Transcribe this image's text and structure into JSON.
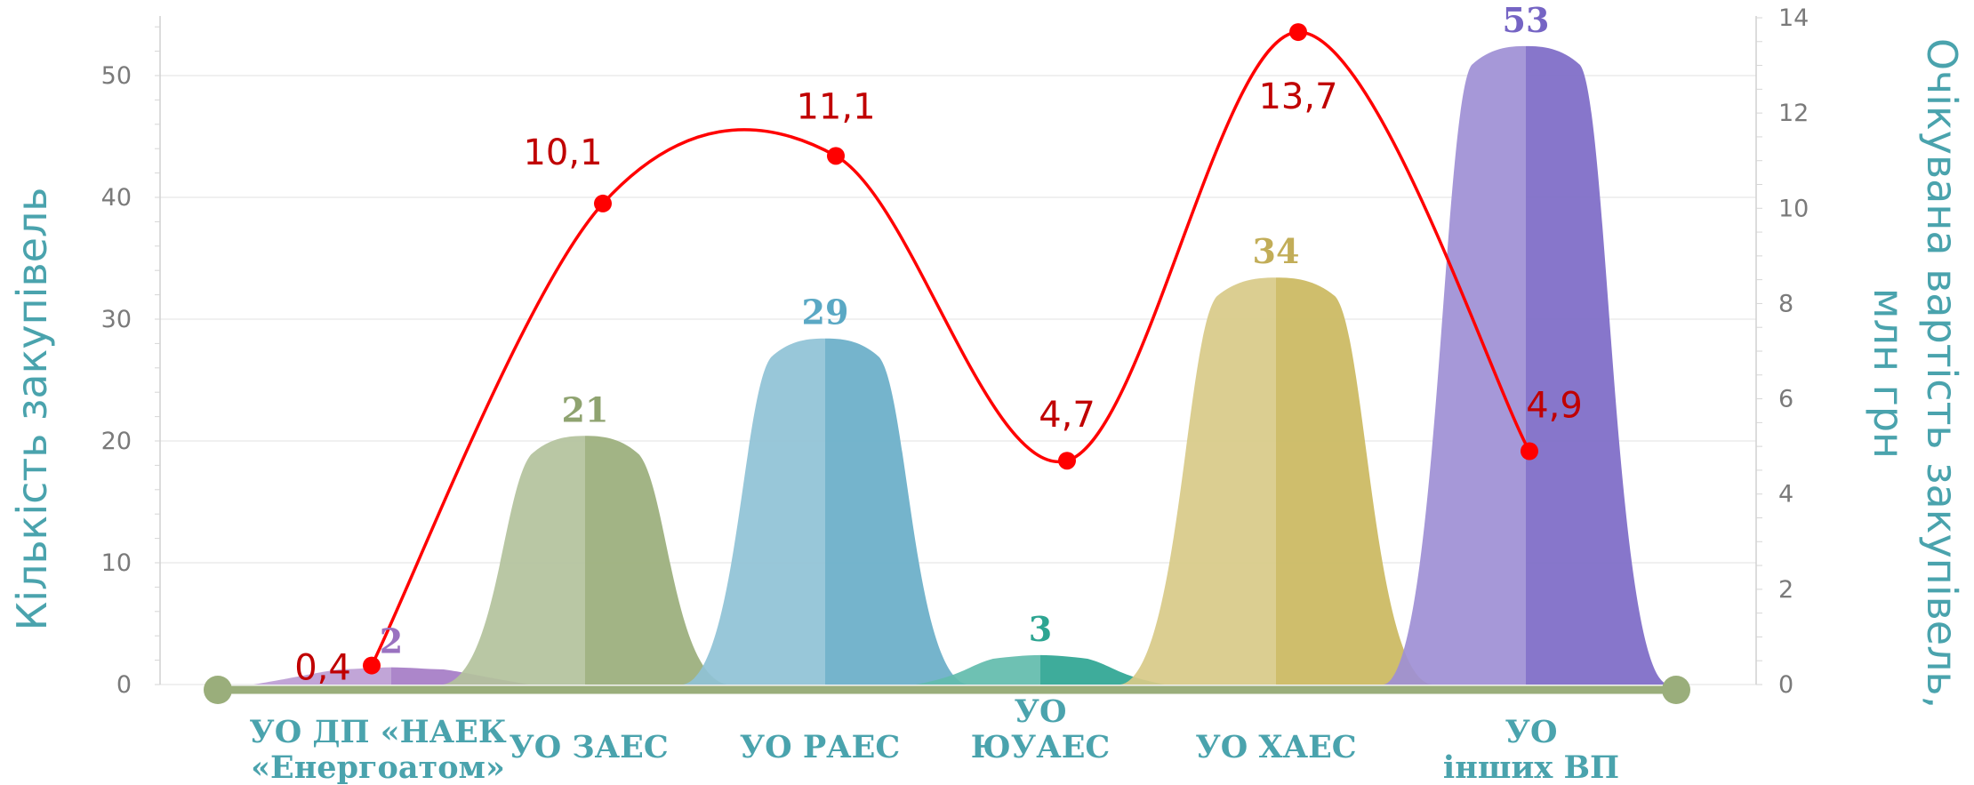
{
  "chart_data": {
    "type": "bar",
    "categories": [
      [
        "УО ДП «НАЕК",
        "«Енергоатом»"
      ],
      [
        "УО ЗАЕС"
      ],
      [
        "УО РАЕС"
      ],
      [
        "УО",
        "ЮУАЕС"
      ],
      [
        "УО ХАЕС"
      ],
      [
        "УО",
        "інших ВП"
      ]
    ],
    "series": [
      {
        "axis": "left",
        "type": "bar",
        "values": [
          2,
          21,
          29,
          3,
          34,
          53
        ],
        "labels": [
          "2",
          "21",
          "29",
          "3",
          "34",
          "53"
        ],
        "colors": [
          "#a57cc6",
          "#9aae7b",
          "#69aec8",
          "#2ea592",
          "#cbb860",
          "#7d6ac7"
        ],
        "label_colors": [
          "#9a72c0",
          "#8fa370",
          "#5aa8c4",
          "#2ea592",
          "#c2ad58",
          "#7564c4"
        ]
      },
      {
        "axis": "right",
        "type": "line",
        "values": [
          0.4,
          10.1,
          11.1,
          4.7,
          13.7,
          4.9
        ],
        "labels": [
          "0,4",
          "10,1",
          "11,1",
          "4,7",
          "13,7",
          "4,9"
        ],
        "color": "#ff0000"
      }
    ],
    "ylabel": "Кількість закупівель",
    "y2label": [
      "Очікувана вартість закупівель,",
      "млн грн"
    ],
    "ylim": [
      0,
      55
    ],
    "y2lim": [
      0,
      14
    ],
    "yticks": [
      0,
      10,
      20,
      30,
      40,
      50
    ],
    "y2ticks": [
      0,
      2,
      4,
      6,
      8,
      10,
      12,
      14
    ],
    "axis_line_color": "#9aae7b",
    "grid": true,
    "legend": "none"
  }
}
